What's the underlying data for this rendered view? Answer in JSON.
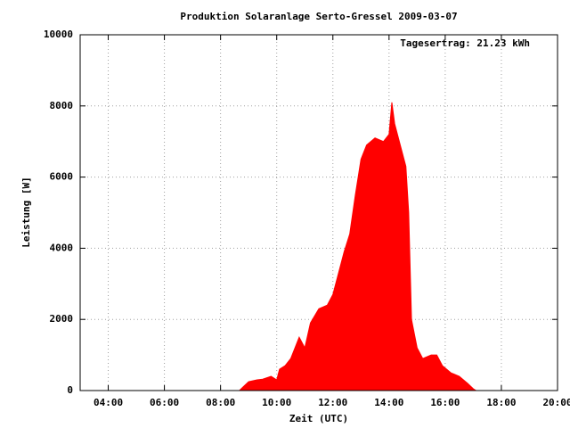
{
  "chart_data": {
    "type": "area",
    "title": "Produktion Solaranlage Serto-Gressel 2009-03-07",
    "annotation": "Tagesertrag: 21.23 kWh",
    "x_label": "Zeit (UTC)",
    "y_label": "Leistung [W]",
    "x": [
      8.67,
      8.8,
      9.0,
      9.3,
      9.5,
      9.8,
      10.0,
      10.1,
      10.3,
      10.5,
      10.8,
      11.0,
      11.2,
      11.5,
      11.8,
      12.0,
      12.2,
      12.4,
      12.6,
      12.8,
      13.0,
      13.2,
      13.5,
      13.8,
      14.0,
      14.1,
      14.2,
      14.4,
      14.6,
      14.7,
      14.8,
      15.0,
      15.2,
      15.5,
      15.7,
      15.9,
      16.2,
      16.5,
      16.8,
      17.0,
      17.1
    ],
    "series": [
      {
        "name": "Leistung",
        "color": "#ff0000",
        "values": [
          0,
          100,
          250,
          300,
          320,
          400,
          300,
          600,
          700,
          900,
          1500,
          1200,
          1900,
          2300,
          2400,
          2700,
          3300,
          3900,
          4400,
          5500,
          6500,
          6900,
          7100,
          7000,
          7200,
          8100,
          7500,
          6900,
          6300,
          5000,
          2000,
          1200,
          900,
          1000,
          1000,
          700,
          500,
          400,
          200,
          50,
          0
        ]
      }
    ],
    "xlim": [
      3,
      20
    ],
    "xticks": [
      {
        "value": 4,
        "label": "04:00"
      },
      {
        "value": 6,
        "label": "06:00"
      },
      {
        "value": 8,
        "label": "08:00"
      },
      {
        "value": 10,
        "label": "10:00"
      },
      {
        "value": 12,
        "label": "12:00"
      },
      {
        "value": 14,
        "label": "14:00"
      },
      {
        "value": 16,
        "label": "16:00"
      },
      {
        "value": 18,
        "label": "18:00"
      },
      {
        "value": 20,
        "label": "20:00"
      }
    ],
    "ylim": [
      0,
      10000
    ],
    "yticks": [
      0,
      2000,
      4000,
      6000,
      8000,
      10000
    ],
    "grid": true
  }
}
